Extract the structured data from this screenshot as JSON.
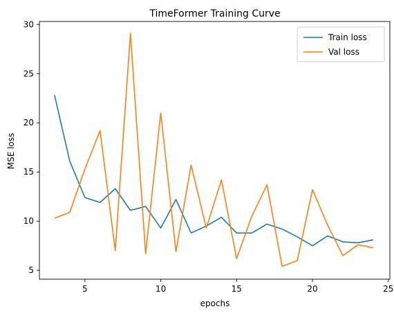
{
  "chart_data": {
    "type": "line",
    "title": "TimeFormer Training Curve",
    "xlabel": "epochs",
    "ylabel": "MSE loss",
    "xlim": [
      2,
      25.1
    ],
    "ylim": [
      4.1,
      30.3
    ],
    "xticks": [
      5,
      10,
      15,
      20,
      25
    ],
    "yticks": [
      5,
      10,
      15,
      20,
      25,
      30
    ],
    "grid": false,
    "legend_position": "top-right",
    "x": [
      3,
      4,
      5,
      6,
      7,
      8,
      9,
      10,
      11,
      12,
      13,
      14,
      15,
      16,
      17,
      18,
      19,
      20,
      21,
      22,
      23,
      24
    ],
    "series": [
      {
        "name": "Train loss",
        "color": "#1f77b4",
        "values": [
          22.8,
          16.1,
          12.4,
          11.9,
          13.3,
          11.1,
          11.5,
          9.3,
          12.2,
          8.8,
          9.5,
          10.4,
          8.8,
          8.8,
          9.7,
          9.2,
          8.4,
          7.5,
          8.5,
          7.9,
          7.8,
          8.1
        ]
      },
      {
        "name": "Val loss",
        "color": "#ff7f0e",
        "values": [
          10.3,
          10.9,
          15.3,
          19.2,
          7.0,
          29.1,
          6.7,
          21.0,
          6.9,
          15.7,
          9.3,
          14.2,
          6.2,
          10.5,
          13.7,
          5.4,
          6.0,
          13.2,
          9.6,
          6.5,
          7.6,
          7.3
        ]
      }
    ]
  }
}
